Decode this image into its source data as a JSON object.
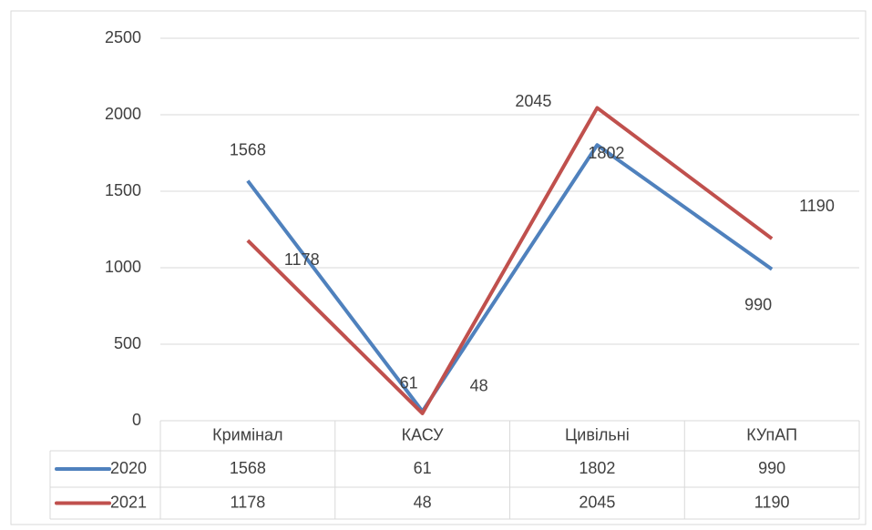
{
  "chart_data": {
    "type": "line",
    "categories": [
      "Кримінал",
      "КАСУ",
      "Цивільні",
      "КУпАП"
    ],
    "series": [
      {
        "name": "2020",
        "color": "#4f81bd",
        "values": [
          1568,
          61,
          1802,
          990
        ]
      },
      {
        "name": "2021",
        "color": "#c0504d",
        "values": [
          1178,
          48,
          2045,
          1190
        ]
      }
    ],
    "ylim": [
      0,
      2500
    ],
    "yticks": [
      0,
      500,
      1000,
      1500,
      2000,
      2500
    ],
    "grid": true,
    "data_table": true
  }
}
